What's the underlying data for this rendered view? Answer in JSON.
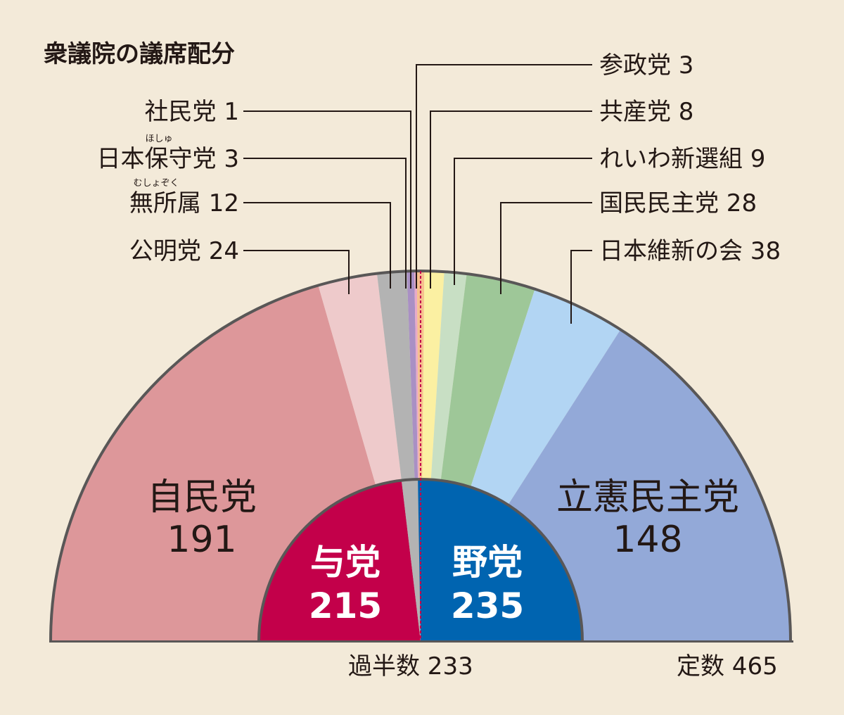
{
  "chart_data": {
    "type": "pie",
    "title": "衆議院の議席配分",
    "total_seats": 465,
    "total_label": "定数 465",
    "majority": 233,
    "majority_label": "過半数 233",
    "parties": [
      {
        "name": "自民党",
        "seats": 191,
        "color": "#dd979a",
        "value_text": "191",
        "label": "自民党"
      },
      {
        "name": "公明党",
        "seats": 24,
        "color": "#eecacb",
        "label": "公明党 24"
      },
      {
        "name": "無所属",
        "seats": 12,
        "color": "#b3b3b3",
        "label": "無所属 12",
        "ruby": "むしょぞく"
      },
      {
        "name": "日本保守党",
        "seats": 3,
        "color": "#a990c4",
        "label": "日本保守党 3",
        "ruby": "ほしゅ"
      },
      {
        "name": "社民党",
        "seats": 1,
        "color": "#e8a9c9",
        "label": "社民党 1"
      },
      {
        "name": "参政党",
        "seats": 3,
        "color": "#f6c08e",
        "label": "参政党 3"
      },
      {
        "name": "共産党",
        "seats": 8,
        "color": "#fbf0a2",
        "label": "共産党 8"
      },
      {
        "name": "れいわ新選組",
        "seats": 9,
        "color": "#c8dfc4",
        "label": "れいわ新選組 9"
      },
      {
        "name": "国民民主党",
        "seats": 28,
        "color": "#9ec798",
        "label": "国民民主党 28"
      },
      {
        "name": "日本維新の会",
        "seats": 38,
        "color": "#b2d5f3",
        "label": "日本維新の会 38"
      },
      {
        "name": "立憲民主党",
        "seats": 148,
        "color": "#93a9d8",
        "value_text": "148",
        "label": "立憲民主党"
      }
    ],
    "blocs": [
      {
        "name": "与党",
        "seats": 215,
        "color": "#c3004a",
        "value_text": "215"
      },
      {
        "name": "無所属",
        "seats": 15,
        "color": "#b3b3b3"
      },
      {
        "name": "野党",
        "seats": 235,
        "color": "#0064b0",
        "value_text": "235"
      }
    ]
  }
}
